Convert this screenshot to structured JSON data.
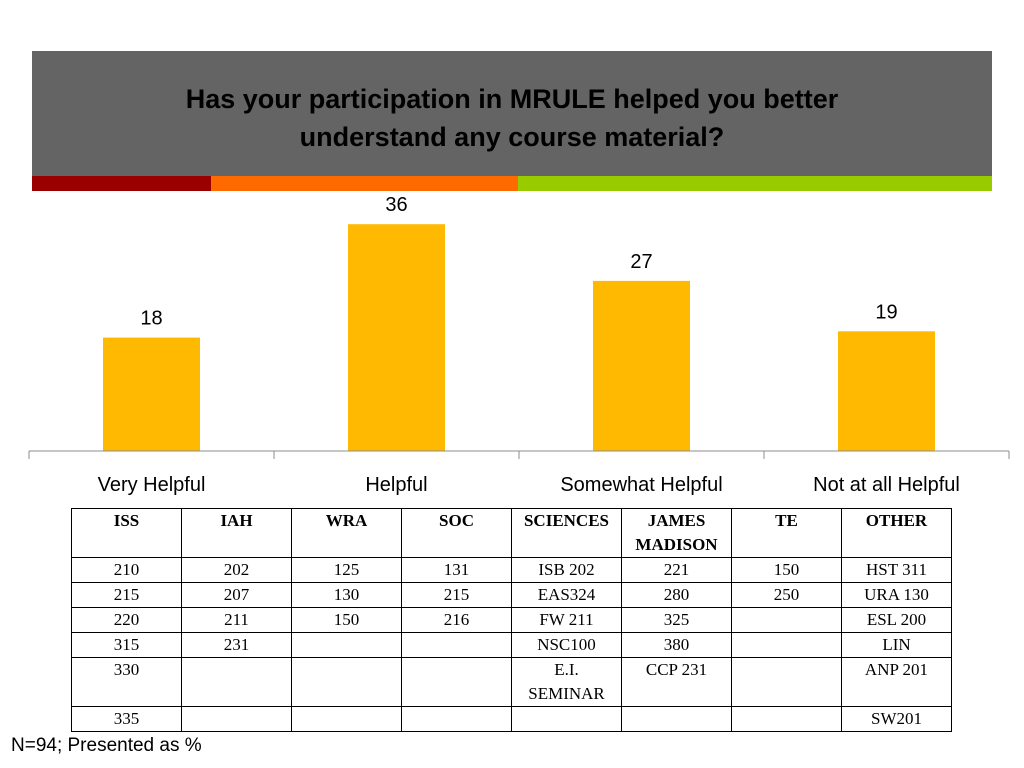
{
  "colors": {
    "header_bg": "#646464",
    "bar": "#FFB900",
    "stripes": [
      "#9B0000",
      "#FF6A00",
      "#99CC00"
    ]
  },
  "chart_data": {
    "type": "bar",
    "title": "Has your participation in MRULE helped you better understand any course material?",
    "categories": [
      "Very Helpful",
      "Helpful",
      "Somewhat Helpful",
      "Not at all Helpful"
    ],
    "values": [
      18,
      36,
      27,
      19
    ],
    "data_labels": [
      "18",
      "36",
      "27",
      "19"
    ],
    "ylim": [
      0,
      40
    ],
    "grid": false,
    "legend": "none"
  },
  "table": {
    "headers": [
      "ISS",
      "IAH",
      "WRA",
      "SOC",
      "SCIENCES",
      "JAMES MADISON",
      "TE",
      "OTHER"
    ],
    "rows": [
      [
        "210",
        "202",
        "125",
        "131",
        "ISB 202",
        "221",
        "150",
        "HST 311"
      ],
      [
        "215",
        "207",
        "130",
        "215",
        "EAS324",
        "280",
        "250",
        "URA 130"
      ],
      [
        "220",
        "211",
        "150",
        "216",
        "FW 211",
        "325",
        "",
        "ESL 200"
      ],
      [
        "315",
        "231",
        "",
        "",
        "NSC100",
        "380",
        "",
        "LIN"
      ],
      [
        "330",
        "",
        "",
        "",
        "E.I. SEMINAR",
        "CCP 231",
        "",
        "ANP 201"
      ],
      [
        "335",
        "",
        "",
        "",
        "",
        "",
        "",
        "SW201"
      ]
    ]
  },
  "footnote": "N=94; Presented as %"
}
